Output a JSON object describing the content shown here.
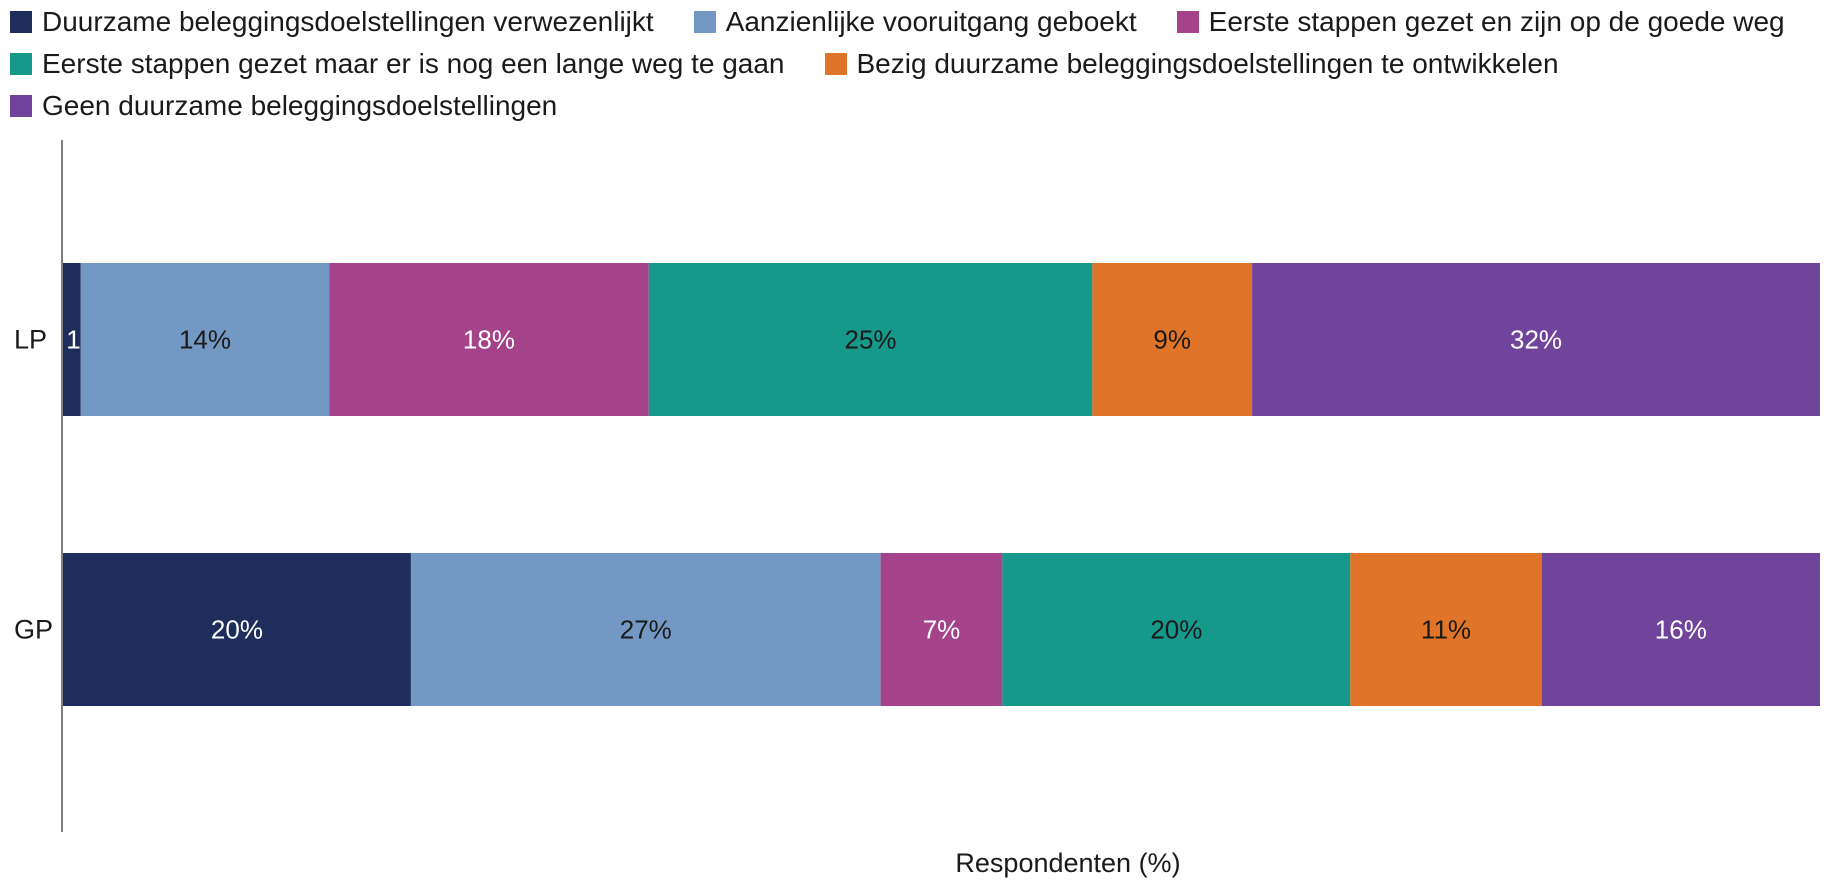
{
  "chart_data": {
    "type": "bar",
    "orientation": "horizontal",
    "stacked": true,
    "categories": [
      "LP",
      "GP"
    ],
    "series": [
      {
        "name": "Duurzame beleggingsdoelstellingen verwezenlijkt",
        "color": "#1f2d5c",
        "label_color": "#ffffff",
        "values": [
          1,
          20
        ]
      },
      {
        "name": "Aanzienlijke vooruitgang geboekt",
        "color": "#7398c4",
        "label_color": "#1a1a1a",
        "values": [
          14,
          27
        ]
      },
      {
        "name": "Eerste stappen gezet en zijn op de goede weg",
        "color": "#a4428a",
        "label_color": "#ffffff",
        "values": [
          18,
          7
        ]
      },
      {
        "name": "Eerste stappen gezet maar er is nog een lange weg te gaan",
        "color": "#16998a",
        "label_color": "#1a1a1a",
        "values": [
          25,
          20
        ]
      },
      {
        "name": "Bezig duurzame beleggingsdoelstellingen te ontwikkelen",
        "color": "#e07428",
        "label_color": "#1a1a1a",
        "values": [
          9,
          11
        ]
      },
      {
        "name": "Geen duurzame beleggingsdoelstellingen",
        "color": "#70449a",
        "label_color": "#ffffff",
        "values": [
          32,
          16
        ]
      }
    ],
    "value_suffix": "%",
    "xlabel": "Respondenten (%)",
    "ylabel": "",
    "legend_position": "top",
    "grid": false
  }
}
